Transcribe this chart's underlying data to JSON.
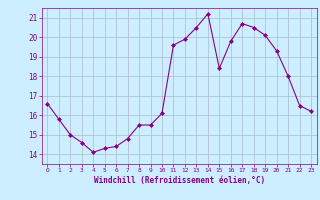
{
  "x": [
    0,
    1,
    2,
    3,
    4,
    5,
    6,
    7,
    8,
    9,
    10,
    11,
    12,
    13,
    14,
    15,
    16,
    17,
    18,
    19,
    20,
    21,
    22,
    23
  ],
  "y": [
    16.6,
    15.8,
    15.0,
    14.6,
    14.1,
    14.3,
    14.4,
    14.8,
    15.5,
    15.5,
    16.1,
    19.6,
    19.9,
    20.5,
    21.2,
    18.4,
    19.8,
    20.7,
    20.5,
    20.1,
    19.3,
    18.0,
    16.5,
    16.2
  ],
  "line_color": "#880088",
  "marker": "D",
  "marker_size": 2,
  "bg_color": "#cceeff",
  "grid_color": "#aabbcc",
  "xlabel": "Windchill (Refroidissement éolien,°C)",
  "xlabel_color": "#880088",
  "tick_color": "#880088",
  "ylim": [
    13.5,
    21.5
  ],
  "xlim": [
    -0.5,
    23.5
  ],
  "yticks": [
    14,
    15,
    16,
    17,
    18,
    19,
    20,
    21
  ],
  "xticks": [
    0,
    1,
    2,
    3,
    4,
    5,
    6,
    7,
    8,
    9,
    10,
    11,
    12,
    13,
    14,
    15,
    16,
    17,
    18,
    19,
    20,
    21,
    22,
    23
  ]
}
